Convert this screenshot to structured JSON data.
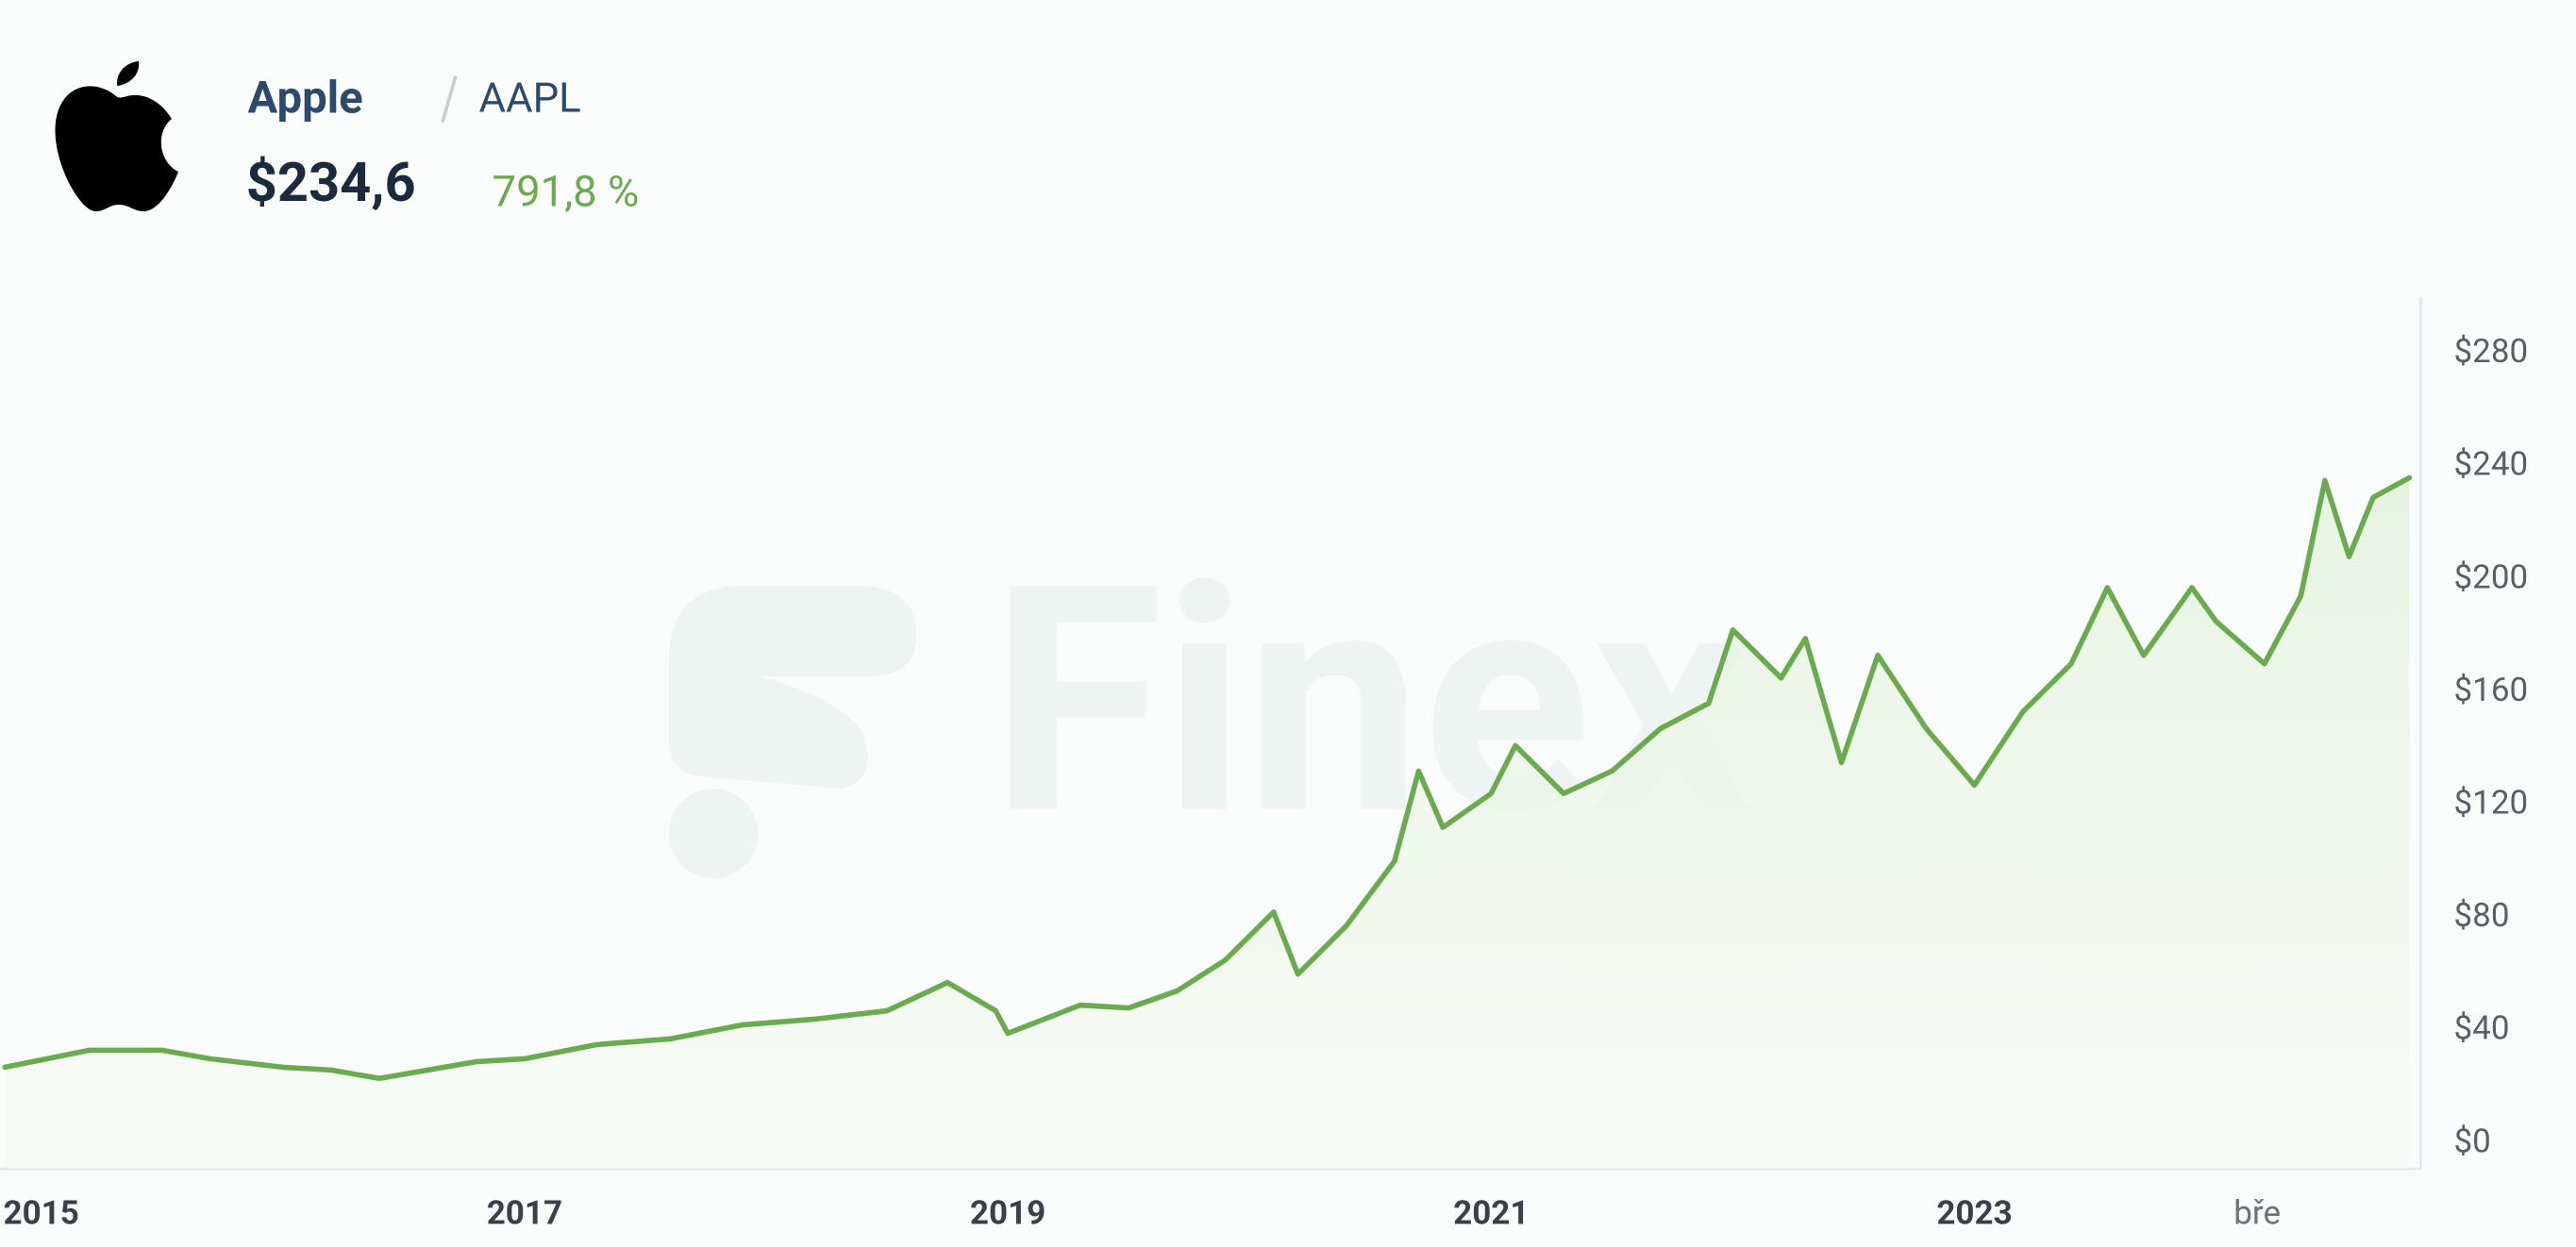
{
  "chart_data": {
    "type": "line",
    "title": "Apple",
    "ticker": "AAPL",
    "price": "$234,6",
    "change": "791,8 %",
    "watermark": "Finex",
    "color": "#6aab4f",
    "x": [
      2014.85,
      2015.2,
      2015.5,
      2015.7,
      2016.0,
      2016.2,
      2016.4,
      2016.8,
      2017.0,
      2017.3,
      2017.6,
      2017.9,
      2018.2,
      2018.5,
      2018.75,
      2018.95,
      2019.0,
      2019.3,
      2019.5,
      2019.7,
      2019.9,
      2020.1,
      2020.2,
      2020.4,
      2020.6,
      2020.7,
      2020.8,
      2021.0,
      2021.1,
      2021.3,
      2021.5,
      2021.7,
      2021.9,
      2022.0,
      2022.2,
      2022.3,
      2022.45,
      2022.6,
      2022.8,
      2023.0,
      2023.2,
      2023.4,
      2023.55,
      2023.7,
      2023.9,
      2024.0,
      2024.2,
      2024.35,
      2024.45,
      2024.55,
      2024.65,
      2024.8
    ],
    "values": [
      27,
      33,
      33,
      30,
      27,
      26,
      23,
      29,
      30,
      35,
      37,
      42,
      44,
      47,
      57,
      47,
      39,
      49,
      48,
      54,
      65,
      82,
      60,
      77,
      100,
      132,
      112,
      124,
      141,
      124,
      132,
      147,
      156,
      182,
      165,
      179,
      135,
      173,
      147,
      127,
      153,
      170,
      197,
      173,
      197,
      185,
      170,
      194,
      235,
      208,
      229,
      236
    ],
    "xlim": [
      2014.85,
      2024.84
    ],
    "xticks": [
      2015,
      2017,
      2019,
      2021,
      2023,
      {
        "value": 2024.17,
        "label": "bře"
      }
    ],
    "ylim": [
      -9,
      300
    ],
    "yticks": [
      {
        "value": 0,
        "label": "$0"
      },
      {
        "value": 40,
        "label": "$40"
      },
      {
        "value": 80,
        "label": "$80"
      },
      {
        "value": 120,
        "label": "$120"
      },
      {
        "value": 160,
        "label": "$160"
      },
      {
        "value": 200,
        "label": "$200"
      },
      {
        "value": 240,
        "label": "$240"
      },
      {
        "value": 280,
        "label": "$280"
      }
    ],
    "grid": false
  }
}
